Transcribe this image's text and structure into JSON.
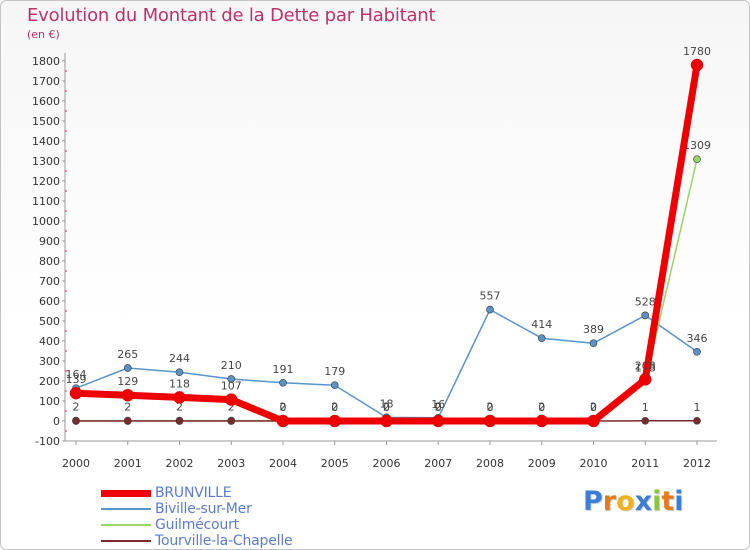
{
  "title": "Evolution du Montant de la Dette par Habitant",
  "subtitle": "(en €)",
  "logo": {
    "text": "Proxiti",
    "letters": [
      "P",
      "r",
      "o",
      "x",
      "i",
      "t",
      "i"
    ],
    "colors": [
      "#3a7fd5",
      "#e87a1c",
      "#f0b11c",
      "#3a7fd5",
      "#8cc63e",
      "#e87a1c",
      "#3a7fd5"
    ]
  },
  "chart_data": {
    "type": "line",
    "title": "Evolution du Montant de la Dette par Habitant",
    "ylabel": "(en €)",
    "x": [
      "2000",
      "2001",
      "2002",
      "2003",
      "2004",
      "2005",
      "2006",
      "2007",
      "2008",
      "2009",
      "2010",
      "2011",
      "2012"
    ],
    "ylim": [
      -100,
      1800
    ],
    "yticks": [
      -100,
      0,
      100,
      200,
      300,
      400,
      500,
      600,
      700,
      800,
      900,
      1000,
      1100,
      1200,
      1300,
      1400,
      1500,
      1600,
      1700,
      1800
    ],
    "grid": false,
    "legend_position": "bottom-left",
    "series": [
      {
        "name": "Biville-sur-Mer",
        "color": "#5a93c8",
        "values": [
          164,
          265,
          244,
          210,
          191,
          179,
          18,
          16,
          557,
          414,
          389,
          528,
          346
        ],
        "labels": [
          "164",
          "265",
          "244",
          "210",
          "191",
          "179",
          "18",
          "16",
          "557",
          "414",
          "389",
          "528",
          "346"
        ]
      },
      {
        "name": "Guilmécourt",
        "color": "#99d467",
        "values": [
          2,
          2,
          2,
          2,
          2,
          2,
          2,
          2,
          2,
          2,
          2,
          198,
          1309
        ],
        "labels": [
          "2",
          "2",
          "2",
          "2",
          "2",
          "2",
          "2",
          "2",
          "2",
          "2",
          "2",
          "198",
          "1309"
        ]
      },
      {
        "name": "Tourville-la-Chapelle",
        "color": "#7a2a2a",
        "values": [
          0,
          0,
          0,
          0,
          0,
          0,
          0,
          0,
          0,
          0,
          0,
          1,
          1
        ],
        "labels": [
          "",
          "",
          "",
          "",
          "",
          "",
          "",
          "",
          "",
          "",
          "",
          "1",
          "1"
        ]
      },
      {
        "name": "BRUNVILLE",
        "color": "#ee0000",
        "values": [
          139,
          129,
          118,
          107,
          0,
          0,
          0,
          0,
          0,
          0,
          0,
          208,
          1780
        ],
        "labels": [
          "139",
          "129",
          "118",
          "107",
          "0",
          "0",
          "0",
          "0",
          "0",
          "0",
          "0",
          "208",
          "1780"
        ]
      }
    ]
  },
  "legend": [
    {
      "name": "BRUNVILLE",
      "color": "#ee0000",
      "thickness": 7
    },
    {
      "name": "Biville-sur-Mer",
      "color": "#5a93c8",
      "thickness": 2
    },
    {
      "name": "Guilmécourt",
      "color": "#99d467",
      "thickness": 2
    },
    {
      "name": "Tourville-la-Chapelle",
      "color": "#7a2a2a",
      "thickness": 2
    }
  ]
}
